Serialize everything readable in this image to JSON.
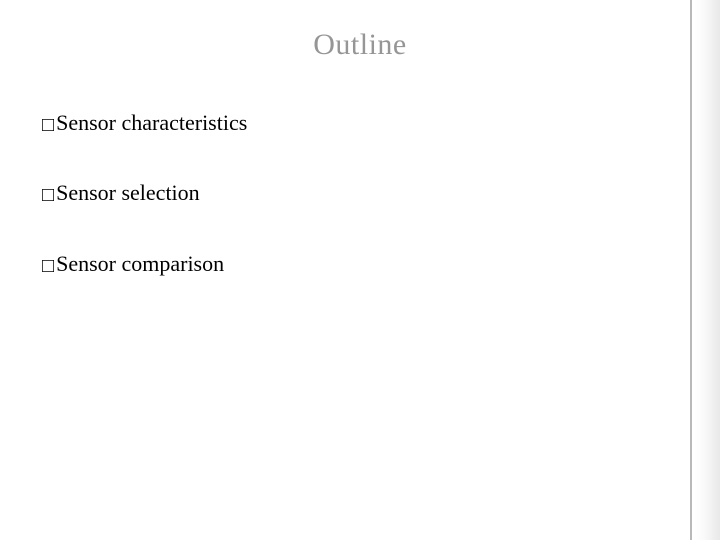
{
  "slide": {
    "title": "Outline",
    "title_color": "#969696",
    "title_fontsize": 30,
    "bullets": [
      {
        "marker": "□",
        "text": "Sensor characteristics"
      },
      {
        "marker": "□",
        "text": "Sensor selection"
      },
      {
        "marker": "□",
        "text": "Sensor comparison"
      }
    ],
    "bullet_marker_color": "#000000",
    "bullet_text_color": "#000000",
    "bullet_fontsize": 22,
    "background_color": "#ffffff",
    "right_rule_color": "#b9b9b9"
  }
}
